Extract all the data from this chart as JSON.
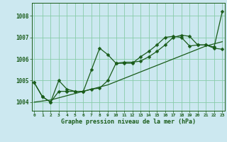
{
  "xlabel": "Graphe pression niveau de la mer (hPa)",
  "background_color": "#cce8f0",
  "grid_color": "#88ccaa",
  "line_color": "#1a5c1a",
  "marker_color": "#1a5c1a",
  "yticks": [
    1004,
    1005,
    1006,
    1007,
    1008
  ],
  "xticks": [
    0,
    1,
    2,
    3,
    4,
    5,
    6,
    7,
    8,
    9,
    10,
    11,
    12,
    13,
    14,
    15,
    16,
    17,
    18,
    19,
    20,
    21,
    22,
    23
  ],
  "ylim": [
    1003.6,
    1008.6
  ],
  "xlim": [
    -0.3,
    23.3
  ],
  "series1": [
    1004.9,
    1004.25,
    1004.0,
    1005.0,
    1004.6,
    1004.5,
    1004.5,
    1005.5,
    1006.5,
    1006.2,
    1005.8,
    1005.8,
    1005.8,
    1006.1,
    1006.35,
    1006.65,
    1007.0,
    1007.05,
    1007.0,
    1006.6,
    1006.65,
    1006.65,
    1006.55,
    1008.2
  ],
  "series2": [
    1004.9,
    1004.25,
    1004.0,
    1004.5,
    1004.5,
    1004.5,
    1004.5,
    1004.6,
    1004.65,
    1005.0,
    1005.8,
    1005.85,
    1005.85,
    1005.9,
    1006.1,
    1006.35,
    1006.65,
    1007.0,
    1007.1,
    1007.05,
    1006.65,
    1006.65,
    1006.5,
    1006.45
  ],
  "series3": [
    1004.0,
    1004.05,
    1004.1,
    1004.2,
    1004.3,
    1004.4,
    1004.5,
    1004.6,
    1004.7,
    1004.8,
    1004.95,
    1005.1,
    1005.25,
    1005.4,
    1005.55,
    1005.7,
    1005.85,
    1006.0,
    1006.15,
    1006.3,
    1006.45,
    1006.6,
    1006.7,
    1006.8
  ]
}
